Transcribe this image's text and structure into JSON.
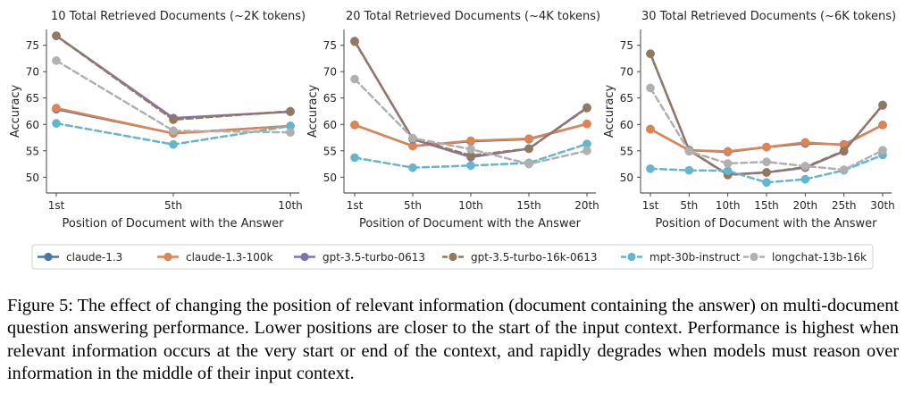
{
  "chart_data": [
    {
      "type": "line",
      "title": "10 Total Retrieved Documents (~2K tokens)",
      "xlabel": "Position of Document with the Answer",
      "ylabel": "Accuracy",
      "x": [
        "1st",
        "5th",
        "10th"
      ],
      "ylim": [
        47,
        78
      ],
      "yticks": [
        50,
        55,
        60,
        65,
        70,
        75
      ],
      "series": [
        {
          "name": "claude-1.3",
          "values": [
            62.9,
            58.3,
            59.7
          ]
        },
        {
          "name": "claude-1.3-100k",
          "values": [
            63.1,
            58.3,
            59.7
          ]
        },
        {
          "name": "gpt-3.5-turbo-0613",
          "values": [
            76.8,
            61.2,
            62.4
          ]
        },
        {
          "name": "gpt-3.5-turbo-16k-0613",
          "values": [
            76.8,
            60.9,
            62.5
          ]
        },
        {
          "name": "mpt-30b-instruct",
          "values": [
            60.2,
            56.2,
            59.7
          ]
        },
        {
          "name": "longchat-13b-16k",
          "values": [
            72.1,
            58.8,
            58.5
          ]
        }
      ]
    },
    {
      "type": "line",
      "title": "20 Total Retrieved Documents (~4K tokens)",
      "xlabel": "Position of Document with the Answer",
      "ylabel": "Accuracy",
      "x": [
        "1st",
        "5th",
        "10th",
        "15th",
        "20th"
      ],
      "ylim": [
        47,
        78
      ],
      "yticks": [
        50,
        55,
        60,
        65,
        70,
        75
      ],
      "series": [
        {
          "name": "claude-1.3",
          "values": [
            59.9,
            55.9,
            56.8,
            57.2,
            60.1
          ]
        },
        {
          "name": "claude-1.3-100k",
          "values": [
            59.9,
            55.9,
            56.9,
            57.3,
            60.1
          ]
        },
        {
          "name": "gpt-3.5-turbo-0613",
          "values": [
            75.8,
            57.2,
            53.8,
            55.4,
            63.2
          ]
        },
        {
          "name": "gpt-3.5-turbo-16k-0613",
          "values": [
            75.7,
            57.3,
            54.1,
            55.4,
            63.1
          ]
        },
        {
          "name": "mpt-30b-instruct",
          "values": [
            53.7,
            51.8,
            52.2,
            52.7,
            56.3
          ]
        },
        {
          "name": "longchat-13b-16k",
          "values": [
            68.6,
            57.4,
            55.3,
            52.5,
            55.0
          ]
        }
      ]
    },
    {
      "type": "line",
      "title": "30 Total Retrieved Documents (~6K tokens)",
      "xlabel": "Position of Document with the Answer",
      "ylabel": "Accuracy",
      "x": [
        "1st",
        "5th",
        "10th",
        "15th",
        "20th",
        "25th",
        "30th"
      ],
      "ylim": [
        47,
        78
      ],
      "yticks": [
        50,
        55,
        60,
        65,
        70,
        75
      ],
      "series": [
        {
          "name": "claude-1.3",
          "values": [
            59.1,
            55.1,
            54.8,
            55.7,
            56.4,
            56.2,
            59.9
          ]
        },
        {
          "name": "claude-1.3-100k",
          "values": [
            59.1,
            55.1,
            54.9,
            55.7,
            56.6,
            56.1,
            59.9
          ]
        },
        {
          "name": "gpt-3.5-turbo-0613",
          "values": [
            73.4,
            55.1,
            50.5,
            50.9,
            51.8,
            54.9,
            63.7
          ]
        },
        {
          "name": "gpt-3.5-turbo-16k-0613",
          "values": [
            73.4,
            55.1,
            50.4,
            50.9,
            51.9,
            55.0,
            63.6
          ]
        },
        {
          "name": "mpt-30b-instruct",
          "values": [
            51.6,
            51.3,
            51.2,
            49.0,
            49.6,
            51.3,
            54.2
          ]
        },
        {
          "name": "longchat-13b-16k",
          "values": [
            66.9,
            54.9,
            52.6,
            52.9,
            52.1,
            51.4,
            55.1
          ]
        }
      ]
    }
  ],
  "legend": [
    {
      "name": "claude-1.3",
      "color": "#4c72b0",
      "dashed": false
    },
    {
      "name": "claude-1.3-100k",
      "color": "#dd8452",
      "dashed": false
    },
    {
      "name": "gpt-3.5-turbo-0613",
      "color": "#8172b3",
      "dashed": false
    },
    {
      "name": "gpt-3.5-turbo-16k-0613",
      "color": "#937860",
      "dashed": true
    },
    {
      "name": "mpt-30b-instruct",
      "color": "#64b5cd",
      "dashed": true
    },
    {
      "name": "longchat-13b-16k",
      "color": "#b0b0b0",
      "dashed": true
    }
  ],
  "caption": "Figure 5: The effect of changing the position of relevant information (document containing the answer) on multi-document question answering performance. Lower positions are closer to the start of the input context. Performance is highest when relevant information occurs at the very start or end of the context, and rapidly degrades when models must reason over information in the middle of their input context."
}
